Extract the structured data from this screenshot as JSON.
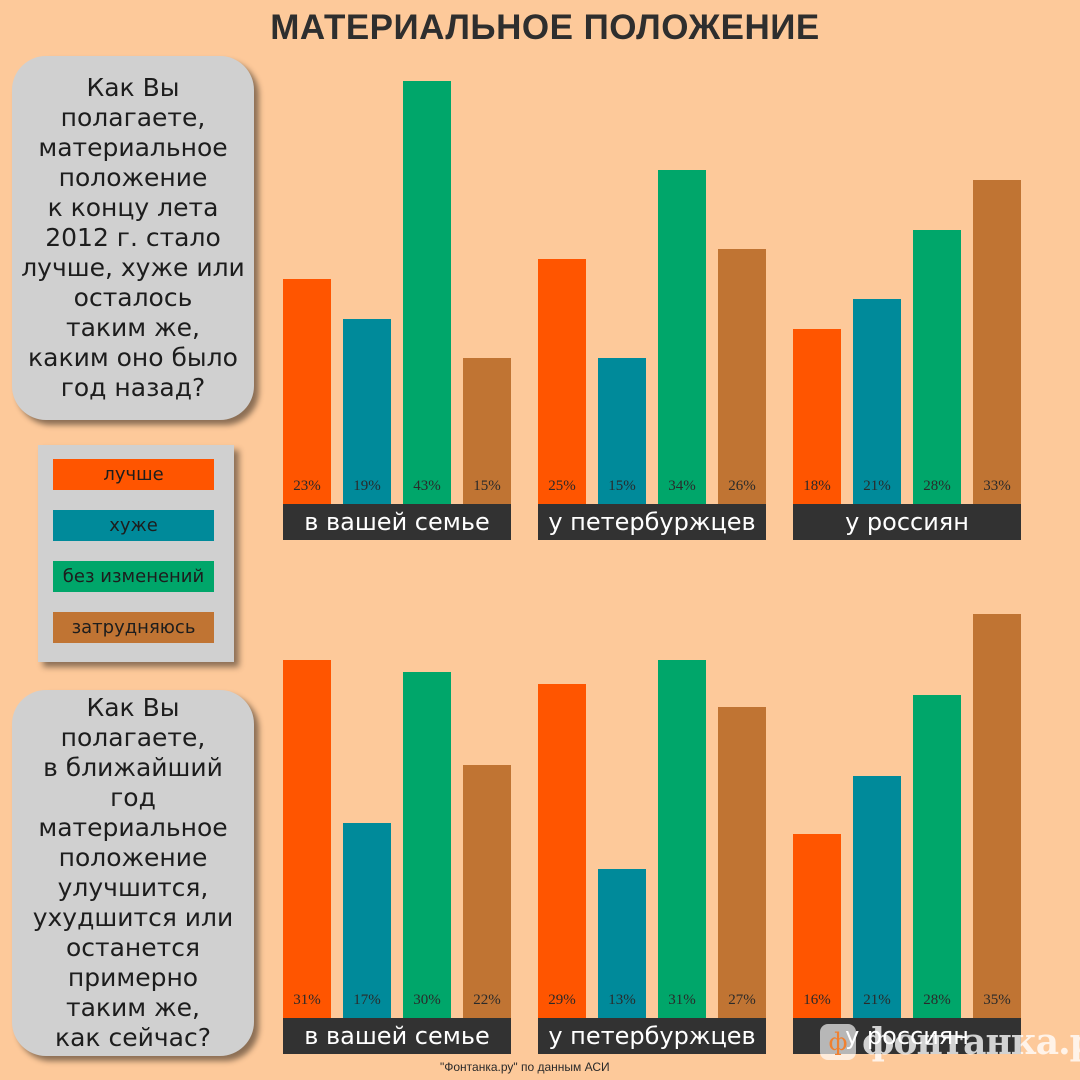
{
  "title": "МАТЕРИАЛЬНОЕ ПОЛОЖЕНИЕ",
  "question_top": "Как Вы полагаете,\nматериальное\nположение\nк концу лета\n2012 г. стало\nлучше, хуже или\nосталось\nтаким же,\nкаким оно было\nгод назад?",
  "question_bottom": "Как Вы полагаете,\nв ближайший\nгод\nматериальное\nположение\nулучшится,\nухудшится или\nостанется\nпримерно\nтаким же,\nкак сейчас?",
  "legend": [
    {
      "label": "лучше",
      "color": "#ff5500"
    },
    {
      "label": "хуже",
      "color": "#008a9a"
    },
    {
      "label": "без изменений",
      "color": "#00a66a"
    },
    {
      "label": "затрудняюсь",
      "color": "#c07433"
    }
  ],
  "source": "\"Фонтанка.ру\" по данным АСИ",
  "logo": {
    "text": "фонтанка.ру",
    "mark": "ф",
    "registered": "®"
  },
  "chart_data": [
    {
      "type": "bar",
      "categories": [
        "в вашей семье",
        "у петербуржцев",
        "у россиян"
      ],
      "series": [
        {
          "name": "лучше",
          "values": [
            23,
            25,
            18
          ]
        },
        {
          "name": "хуже",
          "values": [
            19,
            15,
            21
          ]
        },
        {
          "name": "без изменений",
          "values": [
            43,
            34,
            28
          ]
        },
        {
          "name": "затрудняюсь",
          "values": [
            15,
            26,
            33
          ]
        }
      ],
      "value_labels": [
        [
          "23%",
          "19%",
          "43%",
          "15%"
        ],
        [
          "25%",
          "15%",
          "34%",
          "26%"
        ],
        [
          "18%",
          "21%",
          "28%",
          "33%"
        ]
      ],
      "unit": "%"
    },
    {
      "type": "bar",
      "categories": [
        "в вашей семье",
        "у петербуржцев",
        "у россиян"
      ],
      "series": [
        {
          "name": "лучше",
          "values": [
            31,
            29,
            16
          ]
        },
        {
          "name": "хуже",
          "values": [
            17,
            13,
            21
          ]
        },
        {
          "name": "без изменений",
          "values": [
            30,
            31,
            28
          ]
        },
        {
          "name": "затрудняюсь",
          "values": [
            22,
            27,
            35
          ]
        }
      ],
      "value_labels": [
        [
          "31%",
          "17%",
          "30%",
          "22%"
        ],
        [
          "29%",
          "13%",
          "31%",
          "27%"
        ],
        [
          "16%",
          "21%",
          "28%",
          "35%"
        ]
      ],
      "unit": "%"
    }
  ]
}
